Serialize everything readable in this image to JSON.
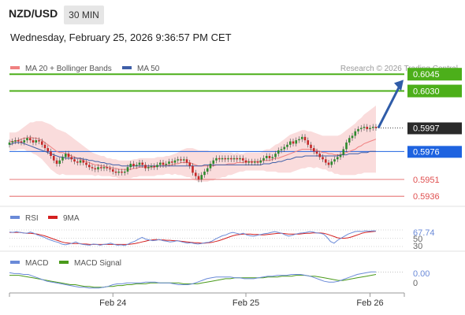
{
  "header": {
    "symbol": "NZD/USD",
    "timeframe": "30 MIN",
    "datetime": "Wednesday, February 25, 2026 9:36:57 PM CET"
  },
  "colors": {
    "candle_up": "#2e8b2e",
    "candle_down": "#c62828",
    "bollinger_fill": "#f9d6d6",
    "ma20": "#f08080",
    "ma50": "#3f5fa8",
    "target_line": "#4caf1a",
    "pivot_line": "#1e63e0",
    "support_line": "#e05050",
    "rsi": "#6a8ad8",
    "rsi_ma": "#d42020",
    "macd": "#6a8ad8",
    "macd_signal": "#4a9a1a",
    "arrow": "#2f5ca8"
  },
  "chart_data": [
    {
      "type": "candlestick",
      "legend": [
        {
          "label": "MA 20 + Bollinger Bands",
          "color_key": "ma20"
        },
        {
          "label": "MA 50",
          "color_key": "ma50"
        }
      ],
      "watermark": "Research © 2026 Trading Central",
      "levels": [
        {
          "value": 0.6045,
          "label": "0.6045",
          "kind": "target"
        },
        {
          "value": 0.603,
          "label": "0.6030",
          "kind": "target"
        },
        {
          "value": 0.5997,
          "label": "0.5997",
          "kind": "last"
        },
        {
          "value": 0.5976,
          "label": "0.5976",
          "kind": "pivot"
        },
        {
          "value": 0.5951,
          "label": "0.5951",
          "kind": "support"
        },
        {
          "value": 0.5936,
          "label": "0.5936",
          "kind": "support"
        }
      ],
      "ylim": [
        0.5927,
        0.6055
      ],
      "close": [
        0.5984,
        0.5985,
        0.5986,
        0.5985,
        0.5984,
        0.5986,
        0.5988,
        0.5986,
        0.5984,
        0.5986,
        0.5985,
        0.5982,
        0.5979,
        0.5976,
        0.5972,
        0.5968,
        0.5965,
        0.5968,
        0.5971,
        0.5974,
        0.5971,
        0.5969,
        0.5967,
        0.5966,
        0.5968,
        0.5966,
        0.5964,
        0.5962,
        0.5961,
        0.596,
        0.5962,
        0.5961,
        0.5962,
        0.5961,
        0.596,
        0.5958,
        0.5957,
        0.5958,
        0.5957,
        0.5958,
        0.5962,
        0.5965,
        0.5963,
        0.5964,
        0.5966,
        0.5964,
        0.5961,
        0.5962,
        0.5963,
        0.5962,
        0.5964,
        0.5966,
        0.5964,
        0.5965,
        0.5967,
        0.5966,
        0.5968,
        0.5969,
        0.5968,
        0.5969,
        0.5966,
        0.5963,
        0.5957,
        0.5954,
        0.5951,
        0.5955,
        0.5958,
        0.5961,
        0.5965,
        0.5968,
        0.597,
        0.5969,
        0.597,
        0.5969,
        0.597,
        0.5969,
        0.597,
        0.5969,
        0.597,
        0.5968,
        0.5966,
        0.5967,
        0.5966,
        0.5967,
        0.5966,
        0.5968,
        0.597,
        0.5972,
        0.597,
        0.5971,
        0.5974,
        0.5977,
        0.5978,
        0.598,
        0.5982,
        0.5985,
        0.5983,
        0.5986,
        0.5987,
        0.5989,
        0.5986,
        0.5982,
        0.5979,
        0.5976,
        0.5974,
        0.5971,
        0.5969,
        0.5966,
        0.5964,
        0.5967,
        0.5969,
        0.5971,
        0.5973,
        0.5978,
        0.5984,
        0.5988,
        0.599,
        0.5994,
        0.5996,
        0.5997,
        0.5998,
        0.5996,
        0.5997,
        0.5998,
        0.5997
      ],
      "ma20": [
        0.5985,
        0.5985,
        0.5985,
        0.5986,
        0.5987,
        0.5988,
        0.5988,
        0.5989,
        0.5988,
        0.5988,
        0.5987,
        0.5986,
        0.5984,
        0.5982,
        0.598,
        0.5978,
        0.5976,
        0.5975,
        0.5975,
        0.5974,
        0.5973,
        0.5972,
        0.5971,
        0.597,
        0.5969,
        0.5968,
        0.5967,
        0.5966,
        0.5965,
        0.5964,
        0.5964,
        0.5963,
        0.5963,
        0.5962,
        0.5962,
        0.5961,
        0.5961,
        0.596,
        0.596,
        0.596,
        0.596,
        0.596,
        0.5961,
        0.5961,
        0.5962,
        0.5962,
        0.5962,
        0.5962,
        0.5962,
        0.5962,
        0.5963,
        0.5963,
        0.5963,
        0.5964,
        0.5964,
        0.5964,
        0.5965,
        0.5965,
        0.5966,
        0.5966,
        0.5966,
        0.5966,
        0.5965,
        0.5964,
        0.5963,
        0.5963,
        0.5963,
        0.5963,
        0.5963,
        0.5963,
        0.5964,
        0.5964,
        0.5964,
        0.5964,
        0.5965,
        0.5965,
        0.5965,
        0.5966,
        0.5966,
        0.5966,
        0.5967,
        0.5967,
        0.5967,
        0.5967,
        0.5967,
        0.5967,
        0.5968,
        0.5968,
        0.5968,
        0.5969,
        0.597,
        0.597,
        0.5971,
        0.5972,
        0.5973,
        0.5974,
        0.5975,
        0.5976,
        0.5977,
        0.5978,
        0.5978,
        0.5978,
        0.5978,
        0.5977,
        0.5977,
        0.5976,
        0.5975,
        0.5975,
        0.5974,
        0.5974,
        0.5973,
        0.5973,
        0.5973,
        0.5974,
        0.5975,
        0.5976,
        0.5977,
        0.5978,
        0.598,
        0.5981,
        0.5983,
        0.5984,
        0.5985,
        0.5986,
        0.5987
      ],
      "bb_width": [
        0.0008,
        0.0008,
        0.0008,
        0.0008,
        0.0009,
        0.001,
        0.0012,
        0.0013,
        0.0014,
        0.0015,
        0.0016,
        0.0017,
        0.0018,
        0.0019,
        0.002,
        0.002,
        0.002,
        0.002,
        0.0019,
        0.0019,
        0.0018,
        0.0017,
        0.0016,
        0.0015,
        0.0014,
        0.0013,
        0.0012,
        0.0011,
        0.001,
        0.001,
        0.0009,
        0.0009,
        0.0009,
        0.0008,
        0.0008,
        0.0008,
        0.0008,
        0.0008,
        0.0008,
        0.0008,
        0.0008,
        0.0008,
        0.0008,
        0.0008,
        0.0008,
        0.0008,
        0.0008,
        0.0008,
        0.0008,
        0.0008,
        0.0008,
        0.0008,
        0.0008,
        0.0008,
        0.0008,
        0.0009,
        0.0009,
        0.001,
        0.0011,
        0.0012,
        0.0013,
        0.0013,
        0.0014,
        0.0014,
        0.0014,
        0.0014,
        0.0014,
        0.0014,
        0.0013,
        0.0013,
        0.0012,
        0.0012,
        0.0011,
        0.0011,
        0.001,
        0.001,
        0.0009,
        0.0009,
        0.0008,
        0.0008,
        0.0008,
        0.0008,
        0.0008,
        0.0008,
        0.0008,
        0.0008,
        0.0009,
        0.001,
        0.001,
        0.0011,
        0.0012,
        0.0013,
        0.0014,
        0.0015,
        0.0016,
        0.0017,
        0.0017,
        0.0017,
        0.0017,
        0.0017,
        0.0017,
        0.0016,
        0.0016,
        0.0016,
        0.0015,
        0.0015,
        0.0015,
        0.0015,
        0.0016,
        0.0016,
        0.0017,
        0.0017,
        0.0018,
        0.0019,
        0.002,
        0.0021,
        0.0022,
        0.0023,
        0.0024,
        0.0025,
        0.0026,
        0.0027,
        0.0028,
        0.0029,
        0.003
      ],
      "ma50": [
        0.5982,
        0.5983,
        0.5984,
        0.5984,
        0.5984,
        0.5983,
        0.5982,
        0.5981,
        0.598,
        0.5979,
        0.5978,
        0.5977,
        0.5976,
        0.5975,
        0.5974,
        0.5973,
        0.5972,
        0.5971,
        0.5971,
        0.597,
        0.597,
        0.597,
        0.597,
        0.597,
        0.597,
        0.5969,
        0.5969,
        0.5968,
        0.5968,
        0.5967,
        0.5967,
        0.5966,
        0.5966,
        0.5965,
        0.5965,
        0.5964,
        0.5964,
        0.5964,
        0.5963,
        0.5963,
        0.5963,
        0.5963,
        0.5963,
        0.5963,
        0.5963,
        0.5963,
        0.5963,
        0.5963,
        0.5963,
        0.5963,
        0.5963,
        0.5963,
        0.5963,
        0.5963,
        0.5963,
        0.5963,
        0.5963,
        0.5963,
        0.5963,
        0.5963,
        0.5963,
        0.5963,
        0.5963,
        0.5963,
        0.5963,
        0.5963,
        0.5964,
        0.5964,
        0.5964,
        0.5964,
        0.5964,
        0.5964,
        0.5964,
        0.5964,
        0.5964,
        0.5964,
        0.5964,
        0.5964,
        0.5964,
        0.5964,
        0.5964,
        0.5964,
        0.5964,
        0.5964,
        0.5964,
        0.5964,
        0.5965,
        0.5965,
        0.5965,
        0.5966,
        0.5966,
        0.5967,
        0.5967,
        0.5968,
        0.5969,
        0.5969,
        0.597,
        0.5971,
        0.5971,
        0.5971,
        0.5972,
        0.5972,
        0.5972,
        0.5972,
        0.5972,
        0.5972,
        0.5972,
        0.5972,
        0.5972,
        0.5972,
        0.5972,
        0.5972,
        0.5973,
        0.5973,
        0.5973,
        0.5974,
        0.5974,
        0.5974,
        0.5974,
        0.5975,
        0.5975,
        0.5975,
        0.5976,
        0.5976,
        0.5976
      ],
      "forecast_arrow": {
        "from": 0.5997,
        "to": 0.604
      }
    },
    {
      "type": "line",
      "legend": [
        {
          "label": "RSI",
          "color_key": "rsi"
        },
        {
          "label": "9MA",
          "color_key": "rsi_ma"
        }
      ],
      "ylim": [
        30,
        70
      ],
      "ticks": [
        {
          "value": 67.74,
          "label": "67.74"
        },
        {
          "value": 50,
          "label": "50"
        },
        {
          "value": 30,
          "label": "30"
        }
      ],
      "series": [
        {
          "name": "RSI",
          "values": [
            65,
            64,
            66,
            64,
            63,
            62,
            65,
            62,
            58,
            55,
            52,
            48,
            45,
            42,
            40,
            36,
            34,
            36,
            38,
            41,
            37,
            35,
            34,
            33,
            36,
            35,
            33,
            35,
            36,
            38,
            35,
            33,
            34,
            32,
            36,
            40,
            43,
            48,
            52,
            48,
            46,
            44,
            45,
            47,
            44,
            43,
            41,
            42,
            44,
            42,
            40,
            38,
            39,
            37,
            36,
            37,
            39,
            40,
            43,
            48,
            52,
            56,
            58,
            62,
            64,
            62,
            60,
            62,
            58,
            56,
            55,
            57,
            59,
            61,
            62,
            64,
            66,
            64,
            62,
            58,
            55,
            57,
            60,
            62,
            63,
            64,
            66,
            65,
            63,
            62,
            60,
            52,
            42,
            38,
            45,
            50,
            55,
            60,
            63,
            66,
            67,
            66,
            68,
            67,
            68,
            67.74
          ]
        },
        {
          "name": "9MA",
          "values": [
            64,
            64,
            64,
            64,
            63,
            62,
            62,
            61,
            60,
            58,
            56,
            53,
            50,
            47,
            44,
            41,
            39,
            38,
            37,
            37,
            37,
            36,
            36,
            35,
            35,
            35,
            35,
            35,
            35,
            35,
            35,
            35,
            35,
            35,
            35,
            36,
            37,
            39,
            41,
            43,
            45,
            46,
            47,
            46,
            46,
            45,
            45,
            44,
            44,
            43,
            42,
            41,
            40,
            39,
            39,
            38,
            38,
            39,
            40,
            42,
            44,
            47,
            50,
            53,
            56,
            58,
            59,
            60,
            60,
            60,
            59,
            59,
            58,
            58,
            59,
            60,
            61,
            62,
            62,
            61,
            60,
            60,
            60,
            60,
            61,
            62,
            62,
            63,
            63,
            63,
            62,
            60,
            57,
            54,
            51,
            50,
            50,
            51,
            53,
            56,
            59,
            62,
            64,
            65,
            66,
            67
          ]
        }
      ]
    },
    {
      "type": "line",
      "legend": [
        {
          "label": "MACD",
          "color_key": "macd"
        },
        {
          "label": "MACD Signal",
          "color_key": "macd_signal"
        }
      ],
      "ylim": [
        -0.0014,
        0.001
      ],
      "ticks": [
        {
          "value": 0.0,
          "label": "0.00"
        },
        {
          "value": -0.0003,
          "label": "0"
        }
      ],
      "series": [
        {
          "name": "MACD",
          "values": [
            0.0006,
            0.0005,
            0.0005,
            0.0004,
            0.0004,
            0.0002,
            0.0,
            -0.0002,
            -0.0004,
            -0.0005,
            -0.0006,
            -0.0007,
            -0.0008,
            -0.0009,
            -0.001,
            -0.0011,
            -0.0011,
            -0.0012,
            -0.0012,
            -0.0012,
            -0.0011,
            -0.001,
            -0.0008,
            -0.0007,
            -0.0007,
            -0.0006,
            -0.0006,
            -0.0006,
            -0.0006,
            -0.0005,
            -0.0005,
            -0.0005,
            -0.0006,
            -0.0006,
            -0.0006,
            -0.0007,
            -0.0008,
            -0.0008,
            -0.0008,
            -0.0007,
            -0.0005,
            -0.0003,
            -0.0001,
            0.0,
            0.0001,
            0.0001,
            0.0001,
            0.0001,
            0.0,
            0.0,
            -0.0001,
            -0.0001,
            -0.0001,
            0.0,
            0.0001,
            0.0002,
            0.0002,
            0.0003,
            0.0003,
            0.0003,
            0.0004,
            0.0004,
            0.0004,
            0.0003,
            0.0002,
            0.0,
            -0.0002,
            -0.0004,
            -0.0005,
            -0.0005,
            -0.0004,
            -0.0002,
            0.0,
            0.0002,
            0.0004,
            0.0005,
            0.0006,
            0.0007,
            0.0007
          ]
        },
        {
          "name": "MACD Signal",
          "values": [
            0.0003,
            0.0003,
            0.0003,
            0.0002,
            0.0001,
            0.0,
            -0.0001,
            -0.0002,
            -0.0003,
            -0.0004,
            -0.0005,
            -0.0006,
            -0.0007,
            -0.0008,
            -0.0008,
            -0.0009,
            -0.001,
            -0.001,
            -0.0011,
            -0.0011,
            -0.0011,
            -0.001,
            -0.001,
            -0.0009,
            -0.0009,
            -0.0008,
            -0.0008,
            -0.0007,
            -0.0007,
            -0.0007,
            -0.0006,
            -0.0006,
            -0.0006,
            -0.0006,
            -0.0006,
            -0.0006,
            -0.0006,
            -0.0007,
            -0.0007,
            -0.0007,
            -0.0007,
            -0.0006,
            -0.0005,
            -0.0004,
            -0.0003,
            -0.0002,
            -0.0001,
            -0.0001,
            0.0,
            0.0,
            0.0,
            0.0,
            0.0,
            0.0,
            0.0,
            0.0001,
            0.0001,
            0.0001,
            0.0002,
            0.0002,
            0.0002,
            0.0003,
            0.0003,
            0.0003,
            0.0002,
            0.0002,
            0.0001,
            0.0,
            -0.0001,
            -0.0002,
            -0.0003,
            -0.0003,
            -0.0002,
            -0.0001,
            0.0,
            0.0001,
            0.0002,
            0.0003,
            0.0004
          ]
        }
      ]
    }
  ],
  "xaxis": {
    "ticks": [
      {
        "label": "Feb 24",
        "index": 35
      },
      {
        "label": "Feb 25",
        "index": 80
      },
      {
        "label": "Feb 26",
        "index": 122
      }
    ],
    "count": 125
  }
}
